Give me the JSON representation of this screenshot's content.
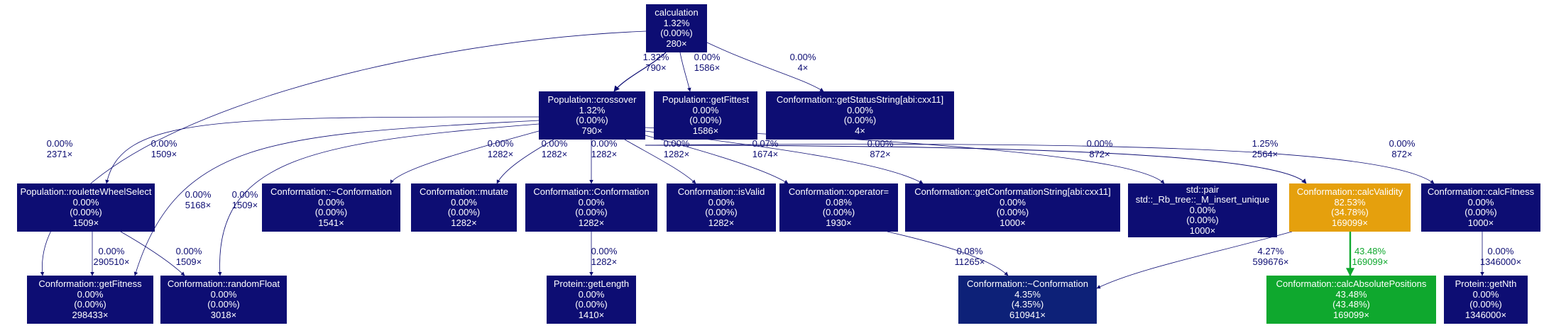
{
  "colors": {
    "navy": "#0d0d73",
    "darkblue": "#0d2178",
    "orange": "#e5a00d",
    "green": "#0fa82e",
    "edge_blue": "#0d0d73",
    "edge_green": "#0fa82e"
  },
  "nodes": [
    {
      "id": "calculation",
      "color": "navy",
      "lines": [
        "calculation",
        "1.32%",
        "(0.00%)",
        "280×"
      ]
    },
    {
      "id": "crossover",
      "color": "navy",
      "lines": [
        "Population::crossover",
        "1.32%",
        "(0.00%)",
        "790×"
      ]
    },
    {
      "id": "getFittest",
      "color": "navy",
      "lines": [
        "Population::getFittest",
        "0.00%",
        "(0.00%)",
        "1586×"
      ]
    },
    {
      "id": "getStatusString",
      "color": "navy",
      "lines": [
        "Conformation::getStatusString[abi:cxx11]",
        "0.00%",
        "(0.00%)",
        "4×"
      ]
    },
    {
      "id": "roulette",
      "color": "navy",
      "lines": [
        "Population::rouletteWheelSelect",
        "0.00%",
        "(0.00%)",
        "1509×"
      ]
    },
    {
      "id": "dtor1",
      "color": "navy",
      "lines": [
        "Conformation::~Conformation",
        "0.00%",
        "(0.00%)",
        "1541×"
      ]
    },
    {
      "id": "mutate",
      "color": "navy",
      "lines": [
        "Conformation::mutate",
        "0.00%",
        "(0.00%)",
        "1282×"
      ]
    },
    {
      "id": "ctor",
      "color": "navy",
      "lines": [
        "Conformation::Conformation",
        "0.00%",
        "(0.00%)",
        "1282×"
      ]
    },
    {
      "id": "isValid",
      "color": "navy",
      "lines": [
        "Conformation::isValid",
        "0.00%",
        "(0.00%)",
        "1282×"
      ]
    },
    {
      "id": "operatorEq",
      "color": "navy",
      "lines": [
        "Conformation::operator=",
        "0.08%",
        "(0.00%)",
        "1930×"
      ]
    },
    {
      "id": "getConfString",
      "color": "navy",
      "lines": [
        "Conformation::getConformationString[abi:cxx11]",
        "0.00%",
        "(0.00%)",
        "1000×"
      ]
    },
    {
      "id": "rbtree",
      "color": "navy",
      "lines": [
        "std::pair",
        "std::_Rb_tree::_M_insert_unique",
        "0.00%",
        "(0.00%)",
        "1000×"
      ]
    },
    {
      "id": "calcValidity",
      "color": "orange",
      "lines": [
        "Conformation::calcValidity",
        "82.53%",
        "(34.78%)",
        "169099×"
      ]
    },
    {
      "id": "calcFitness",
      "color": "navy",
      "lines": [
        "Conformation::calcFitness",
        "0.00%",
        "(0.00%)",
        "1000×"
      ]
    },
    {
      "id": "getFitness",
      "color": "navy",
      "lines": [
        "Conformation::getFitness",
        "0.00%",
        "(0.00%)",
        "298433×"
      ]
    },
    {
      "id": "randomFloat",
      "color": "navy",
      "lines": [
        "Conformation::randomFloat",
        "0.00%",
        "(0.00%)",
        "3018×"
      ]
    },
    {
      "id": "getLength",
      "color": "navy",
      "lines": [
        "Protein::getLength",
        "0.00%",
        "(0.00%)",
        "1410×"
      ]
    },
    {
      "id": "dtor2",
      "color": "darkblue",
      "lines": [
        "Conformation::~Conformation",
        "4.35%",
        "(4.35%)",
        "610941×"
      ]
    },
    {
      "id": "calcAbs",
      "color": "green",
      "lines": [
        "Conformation::calcAbsolutePositions",
        "43.48%",
        "(43.48%)",
        "169099×"
      ]
    },
    {
      "id": "getNth",
      "color": "navy",
      "lines": [
        "Protein::getNth",
        "0.00%",
        "(0.00%)",
        "1346000×"
      ]
    }
  ],
  "edges": [
    {
      "from": "calculation",
      "to": "getFitness",
      "color": "edge_blue",
      "labels": [
        "0.00%",
        "2371×"
      ]
    },
    {
      "from": "calculation",
      "to": "crossover",
      "color": "edge_blue",
      "labels": [
        "1.32%",
        "790×"
      ]
    },
    {
      "from": "calculation",
      "to": "getFittest",
      "color": "edge_blue",
      "labels": [
        "0.00%",
        "1586×"
      ]
    },
    {
      "from": "calculation",
      "to": "getStatusString",
      "color": "edge_blue",
      "labels": [
        "0.00%",
        "4×"
      ]
    },
    {
      "from": "crossover",
      "to": "roulette",
      "color": "edge_blue",
      "labels": [
        "0.00%",
        "1509×"
      ]
    },
    {
      "from": "crossover",
      "to": "getFitness",
      "color": "edge_blue",
      "labels": [
        "0.00%",
        "5168×"
      ]
    },
    {
      "from": "crossover",
      "to": "randomFloat",
      "color": "edge_blue",
      "labels": [
        "0.00%",
        "1509×"
      ]
    },
    {
      "from": "crossover",
      "to": "dtor1",
      "color": "edge_blue",
      "labels": [
        "0.00%",
        "1282×"
      ]
    },
    {
      "from": "crossover",
      "to": "mutate",
      "color": "edge_blue",
      "labels": [
        "0.00%",
        "1282×"
      ]
    },
    {
      "from": "crossover",
      "to": "ctor",
      "color": "edge_blue",
      "labels": [
        "0.00%",
        "1282×"
      ]
    },
    {
      "from": "crossover",
      "to": "isValid",
      "color": "edge_blue",
      "labels": [
        "0.00%",
        "1282×"
      ]
    },
    {
      "from": "crossover",
      "to": "operatorEq",
      "color": "edge_blue",
      "labels": [
        "0.07%",
        "1674×"
      ]
    },
    {
      "from": "crossover",
      "to": "getConfString",
      "color": "edge_blue",
      "labels": [
        "0.00%",
        "872×"
      ]
    },
    {
      "from": "crossover",
      "to": "rbtree",
      "color": "edge_blue",
      "labels": [
        "0.00%",
        "872×"
      ]
    },
    {
      "from": "crossover",
      "to": "calcValidity",
      "color": "edge_blue",
      "labels": [
        "1.25%",
        "2564×"
      ]
    },
    {
      "from": "crossover",
      "to": "calcFitness",
      "color": "edge_blue",
      "labels": [
        "0.00%",
        "872×"
      ]
    },
    {
      "from": "roulette",
      "to": "getFitness",
      "color": "edge_blue",
      "labels": [
        "0.00%",
        "290510×"
      ]
    },
    {
      "from": "roulette",
      "to": "randomFloat",
      "color": "edge_blue",
      "labels": [
        "0.00%",
        "1509×"
      ]
    },
    {
      "from": "ctor",
      "to": "getLength",
      "color": "edge_blue",
      "labels": [
        "0.00%",
        "1282×"
      ]
    },
    {
      "from": "operatorEq",
      "to": "dtor2",
      "color": "edge_blue",
      "labels": [
        "0.08%",
        "11265×"
      ]
    },
    {
      "from": "calcValidity",
      "to": "dtor2",
      "color": "edge_blue",
      "labels": [
        "4.27%",
        "599676×"
      ]
    },
    {
      "from": "calcValidity",
      "to": "calcAbs",
      "color": "edge_green",
      "labels": [
        "43.48%",
        "169099×"
      ]
    },
    {
      "from": "calcFitness",
      "to": "getNth",
      "color": "edge_blue",
      "labels": [
        "0.00%",
        "1346000×"
      ]
    }
  ]
}
